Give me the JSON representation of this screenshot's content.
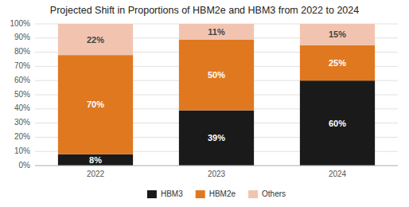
{
  "chart_data": {
    "type": "bar",
    "stacked": true,
    "title": "Projected Shift in Proportions of HBM2e and HBM3 from 2022 to 2024",
    "categories": [
      "2022",
      "2023",
      "2024"
    ],
    "series": [
      {
        "name": "HBM3",
        "color": "#1a1a1a",
        "values": [
          8,
          39,
          60
        ],
        "value_labels": [
          "8%",
          "39%",
          "60%"
        ]
      },
      {
        "name": "HBM2e",
        "color": "#e07820",
        "values": [
          70,
          50,
          25
        ],
        "value_labels": [
          "70%",
          "50%",
          "25%"
        ]
      },
      {
        "name": "Others",
        "color": "#f2c4b0",
        "values": [
          22,
          11,
          15
        ],
        "value_labels": [
          "22%",
          "11%",
          "15%"
        ]
      }
    ],
    "ylim": [
      0,
      100
    ],
    "yticks": [
      {
        "value": 0,
        "label": "0%"
      },
      {
        "value": 10,
        "label": "10%"
      },
      {
        "value": 20,
        "label": "20%"
      },
      {
        "value": 30,
        "label": "30%"
      },
      {
        "value": 40,
        "label": "40%"
      },
      {
        "value": 50,
        "label": "50%"
      },
      {
        "value": 60,
        "label": "60%"
      },
      {
        "value": 70,
        "label": "70%"
      },
      {
        "value": 80,
        "label": "80%"
      },
      {
        "value": 90,
        "label": "90%"
      },
      {
        "value": 100,
        "label": "100%"
      }
    ],
    "grid": true,
    "data_labels": true,
    "legend": "bottom"
  }
}
